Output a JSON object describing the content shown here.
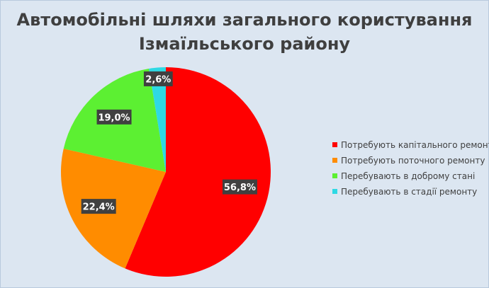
{
  "chart_data": {
    "type": "pie",
    "title_lines": [
      "Автомобільні шляхи загального користування",
      "Ізмаїльського району"
    ],
    "categories": [
      "Потребують капітального ремонту",
      "Потребують поточного ремонту",
      "Перебувають в доброму стані",
      "Перебувають в стадії ремонту"
    ],
    "values": [
      56.8,
      22.4,
      19.0,
      2.6
    ],
    "data_labels": [
      "56,8%",
      "22,4%",
      "19,0%",
      "2,6%"
    ],
    "colors": [
      "#ff0000",
      "#ff8c00",
      "#5cf032",
      "#2ed9e4"
    ],
    "start_angle_deg": 0,
    "direction": "clockwise",
    "legend_position": "right",
    "background": "#dce6f1"
  }
}
